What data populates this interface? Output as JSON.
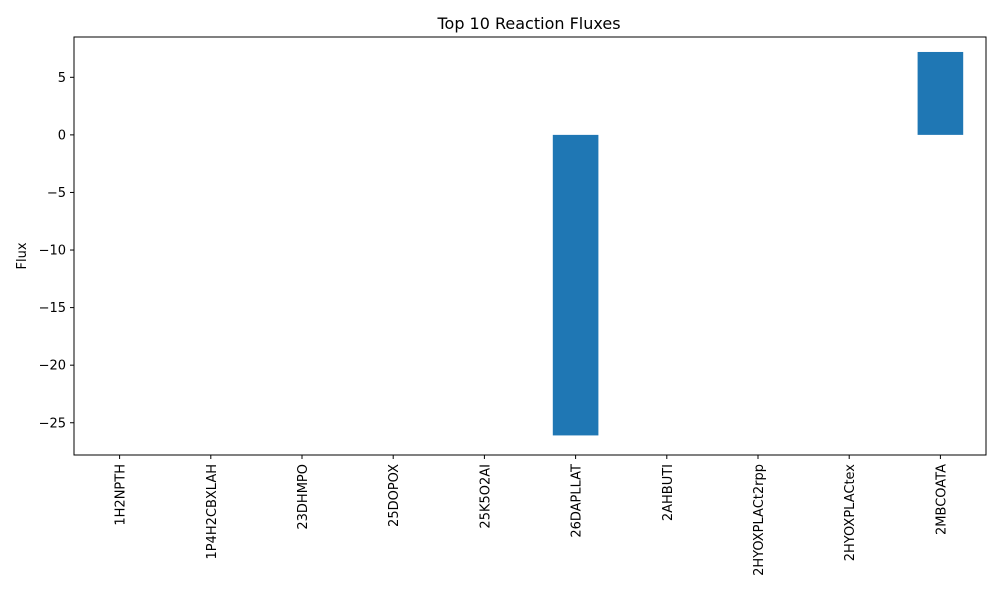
{
  "chart_data": {
    "type": "bar",
    "title": "Top 10 Reaction Fluxes",
    "xlabel": "",
    "ylabel": "Flux",
    "categories": [
      "1H2NPTH",
      "1P4H2CBXLAH",
      "23DHMPO",
      "25DOPOX",
      "25K5O2AI",
      "26DAPLLAT",
      "2AHBUTI",
      "2HYOXPLACt2rpp",
      "2HYOXPLACtex",
      "2MBCOATA"
    ],
    "values": [
      0,
      0,
      0,
      0,
      0,
      -26.1,
      0,
      0,
      0,
      7.2
    ],
    "ylim": [
      -27.8,
      8.5
    ],
    "yticks": [
      -25,
      -20,
      -15,
      -10,
      -5,
      0,
      5
    ],
    "ytick_labels": [
      "−25",
      "−20",
      "−15",
      "−10",
      "−5",
      "0",
      "5"
    ],
    "bar_color": "#1f77b4",
    "grid": false,
    "legend": "none"
  }
}
